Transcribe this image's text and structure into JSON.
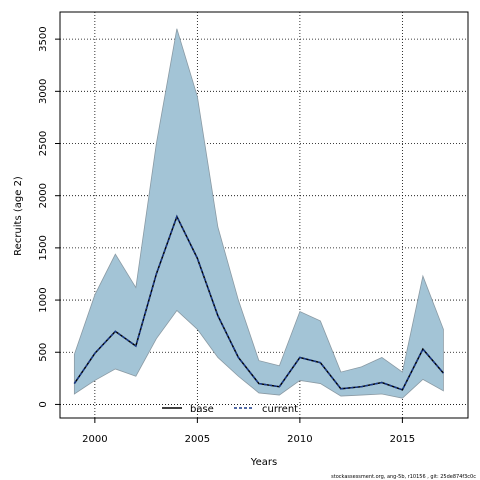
{
  "chart_data": {
    "type": "line",
    "xlabel": "Years",
    "ylabel": "Recruits (age 2)",
    "xlim": [
      1998.3,
      2018.2
    ],
    "ylim": [
      -130,
      3760
    ],
    "x_ticks": [
      2000,
      2005,
      2010,
      2015
    ],
    "y_ticks": [
      0,
      500,
      1000,
      1500,
      2000,
      2500,
      3000,
      3500
    ],
    "grid": true,
    "legend_position": "bottom-center",
    "x": [
      1999,
      2000,
      2001,
      2002,
      2003,
      2004,
      2005,
      2006,
      2007,
      2008,
      2009,
      2010,
      2011,
      2012,
      2013,
      2014,
      2015,
      2016,
      2017
    ],
    "band": {
      "lower": [
        100,
        230,
        340,
        270,
        630,
        900,
        720,
        450,
        270,
        110,
        90,
        230,
        200,
        80,
        90,
        100,
        60,
        240,
        130
      ],
      "upper": [
        480,
        1050,
        1440,
        1120,
        2500,
        3600,
        2950,
        1700,
        1000,
        420,
        370,
        890,
        800,
        310,
        360,
        450,
        310,
        1230,
        720
      ],
      "color": "#a3c4d6",
      "edge_color": "#8a9aa4"
    },
    "series": [
      {
        "name": "base",
        "style": "solid",
        "color": "#000000",
        "values": [
          200,
          490,
          700,
          560,
          1250,
          1800,
          1400,
          850,
          450,
          200,
          170,
          450,
          400,
          150,
          170,
          210,
          140,
          530,
          300
        ]
      },
      {
        "name": "current",
        "style": "dashed",
        "color": "#1a3a8a",
        "values": [
          200,
          490,
          700,
          560,
          1250,
          1800,
          1400,
          850,
          450,
          200,
          170,
          450,
          400,
          150,
          170,
          210,
          140,
          530,
          300
        ]
      }
    ],
    "footnote": "stockassessment.org, ang-5b, r10156 , git: 25de874f3c0c"
  }
}
